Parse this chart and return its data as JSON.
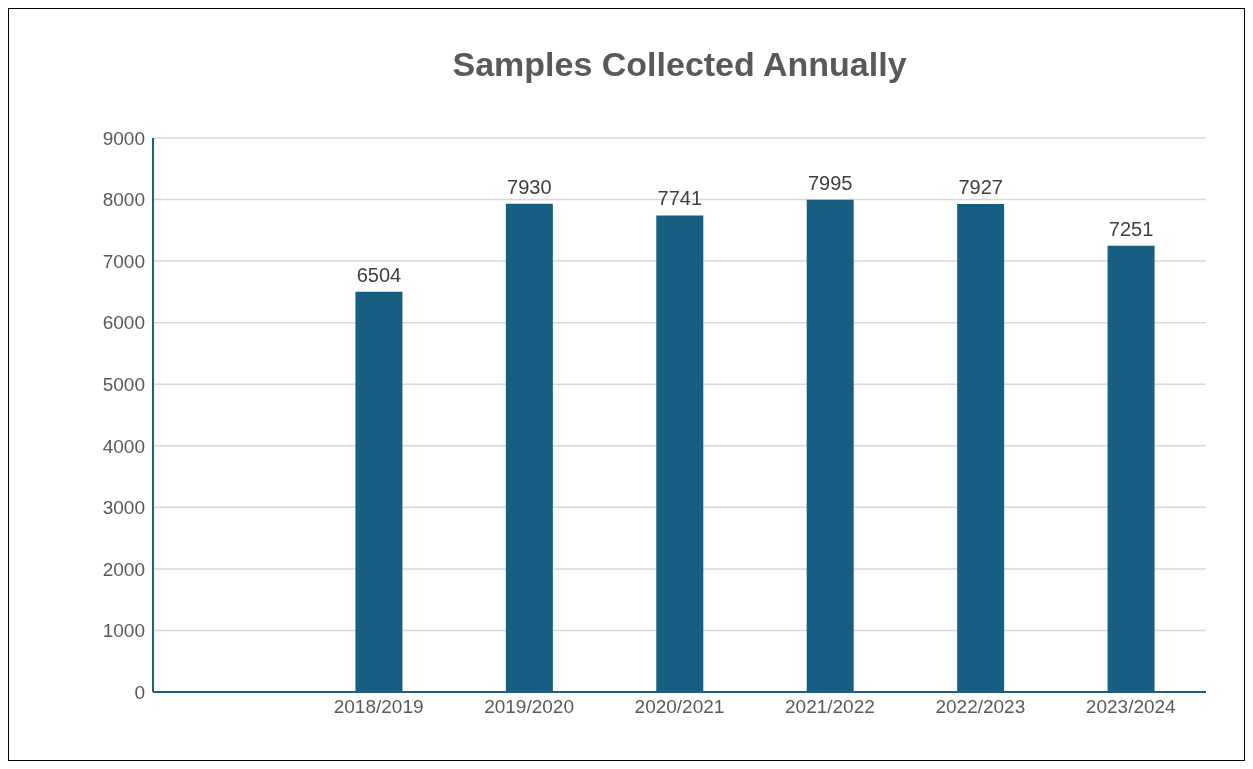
{
  "chart_data": {
    "type": "bar",
    "title": "Samples Collected Annually",
    "categories": [
      null,
      "2018/2019",
      "2019/2020",
      "2020/2021",
      "2021/2022",
      "2022/2023",
      "2023/2024"
    ],
    "values": [
      null,
      6504,
      7930,
      7741,
      7995,
      7927,
      7251
    ],
    "color": "#175f82",
    "ylim": [
      0,
      9000
    ],
    "yticks": [
      0,
      1000,
      2000,
      3000,
      4000,
      5000,
      6000,
      7000,
      8000,
      9000
    ],
    "grid": "y",
    "data_labels": true
  }
}
